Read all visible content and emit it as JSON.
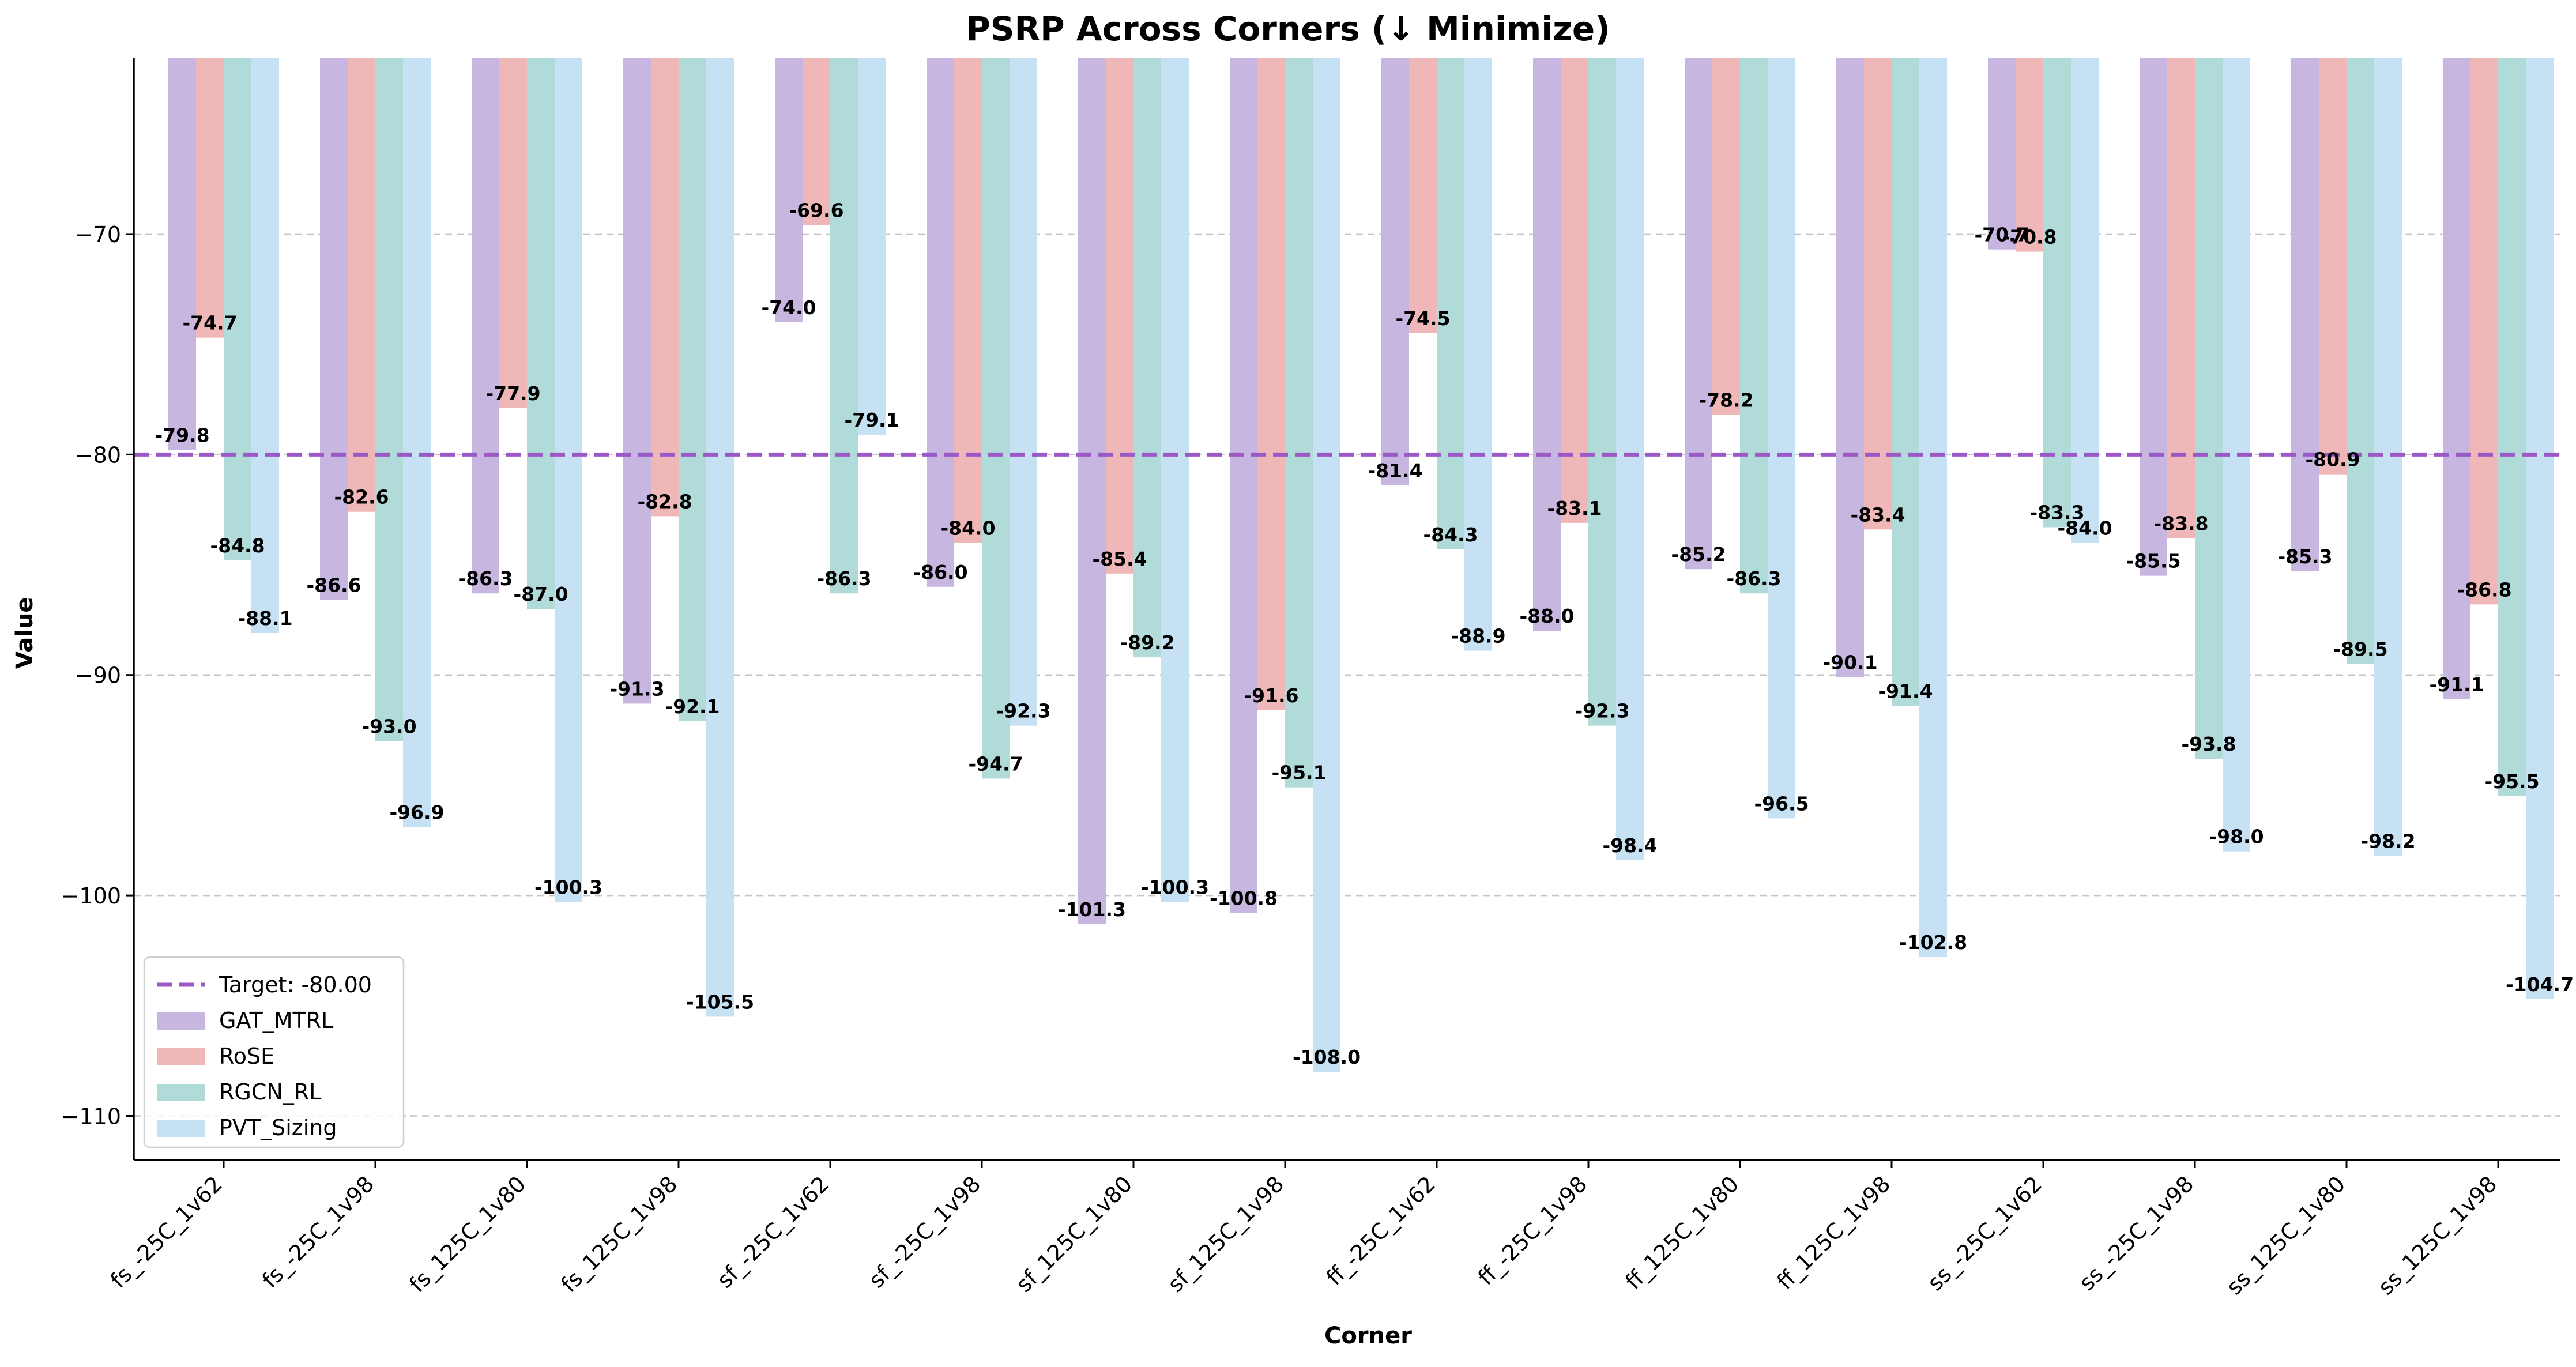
{
  "chart_data": {
    "type": "bar",
    "title": "PSRP Across Corners (↓ Minimize)",
    "xlabel": "Corner",
    "ylabel": "Value",
    "ylim": [
      -112,
      -62
    ],
    "yticks": [
      -70,
      -80,
      -90,
      -100,
      -110
    ],
    "ytick_labels": [
      "−70",
      "−80",
      "−90",
      "−100",
      "−110"
    ],
    "grid": "y-dashed",
    "legend_position": "lower-left",
    "categories": [
      "fs_-25C_1v62",
      "fs_-25C_1v98",
      "fs_125C_1v80",
      "fs_125C_1v98",
      "sf_-25C_1v62",
      "sf_-25C_1v98",
      "sf_125C_1v80",
      "sf_125C_1v98",
      "ff_-25C_1v62",
      "ff_-25C_1v98",
      "ff_125C_1v80",
      "ff_125C_1v98",
      "ss_-25C_1v62",
      "ss_-25C_1v98",
      "ss_125C_1v80",
      "ss_125C_1v98"
    ],
    "series": [
      {
        "name": "GAT_MTRL",
        "color": "#c6b6e0",
        "values": [
          -79.8,
          -86.6,
          -86.3,
          -91.3,
          -74.0,
          -86.0,
          -101.3,
          -100.8,
          -81.4,
          -88.0,
          -85.2,
          -90.1,
          -70.7,
          -85.5,
          -85.3,
          -91.1
        ]
      },
      {
        "name": "RoSE",
        "color": "#f0b7b8",
        "values": [
          -74.7,
          -82.6,
          -77.9,
          -82.8,
          -69.6,
          -84.0,
          -85.4,
          -91.6,
          -74.5,
          -83.1,
          -78.2,
          -83.4,
          -70.8,
          -83.8,
          -80.9,
          -86.8
        ]
      },
      {
        "name": "RGCN_RL",
        "color": "#b1dbd8",
        "values": [
          -84.8,
          -93.0,
          -87.0,
          -92.1,
          -86.3,
          -94.7,
          -89.2,
          -95.1,
          -84.3,
          -92.3,
          -86.3,
          -91.4,
          -83.3,
          -93.8,
          -89.5,
          -95.5
        ]
      },
      {
        "name": "PVT_Sizing",
        "color": "#c6e1f4",
        "values": [
          -88.1,
          -96.9,
          -100.3,
          -105.5,
          -79.1,
          -92.3,
          -100.3,
          -108.0,
          -88.9,
          -98.4,
          -96.5,
          -102.8,
          -84.0,
          -98.0,
          -98.2,
          -104.7
        ]
      }
    ],
    "target": {
      "label": "Target: -80.00",
      "value": -80.0,
      "color": "#9b59c6"
    }
  }
}
